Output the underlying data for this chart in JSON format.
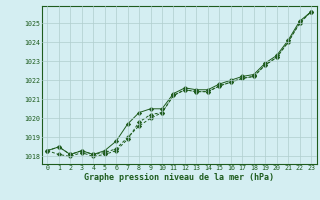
{
  "x": [
    0,
    1,
    2,
    3,
    4,
    5,
    6,
    7,
    8,
    9,
    10,
    11,
    12,
    13,
    14,
    15,
    16,
    17,
    18,
    19,
    20,
    21,
    22,
    23
  ],
  "line1": [
    1018.3,
    1018.5,
    1018.1,
    1018.3,
    1018.1,
    1018.2,
    1018.4,
    1019.0,
    1019.6,
    1020.0,
    1020.3,
    1021.2,
    1021.5,
    1021.4,
    1021.4,
    1021.7,
    1021.9,
    1022.1,
    1022.2,
    1022.8,
    1023.2,
    1024.0,
    1025.0,
    1025.6
  ],
  "line2": [
    1018.3,
    1018.1,
    1018.0,
    1018.2,
    1018.0,
    1018.1,
    1018.3,
    1018.9,
    1019.8,
    1020.2,
    1020.3,
    1021.2,
    1021.5,
    1021.4,
    1021.4,
    1021.7,
    1021.9,
    1022.1,
    1022.2,
    1022.8,
    1023.2,
    1024.0,
    1025.0,
    1025.6
  ],
  "line3": [
    1018.3,
    1018.5,
    1018.1,
    1018.3,
    1018.1,
    1018.3,
    1018.8,
    1019.7,
    1020.3,
    1020.5,
    1020.5,
    1021.3,
    1021.6,
    1021.5,
    1021.5,
    1021.8,
    1022.0,
    1022.2,
    1022.3,
    1022.9,
    1023.3,
    1024.1,
    1025.1,
    1025.6
  ],
  "bg_color": "#d4eef2",
  "grid_color": "#b0cece",
  "line_color": "#1e5c1e",
  "ylabel_values": [
    1018,
    1019,
    1020,
    1021,
    1022,
    1023,
    1024,
    1025
  ],
  "xlabel_label": "Graphe pression niveau de la mer (hPa)",
  "ylim": [
    1017.6,
    1025.9
  ],
  "xlim": [
    -0.5,
    23.5
  ]
}
